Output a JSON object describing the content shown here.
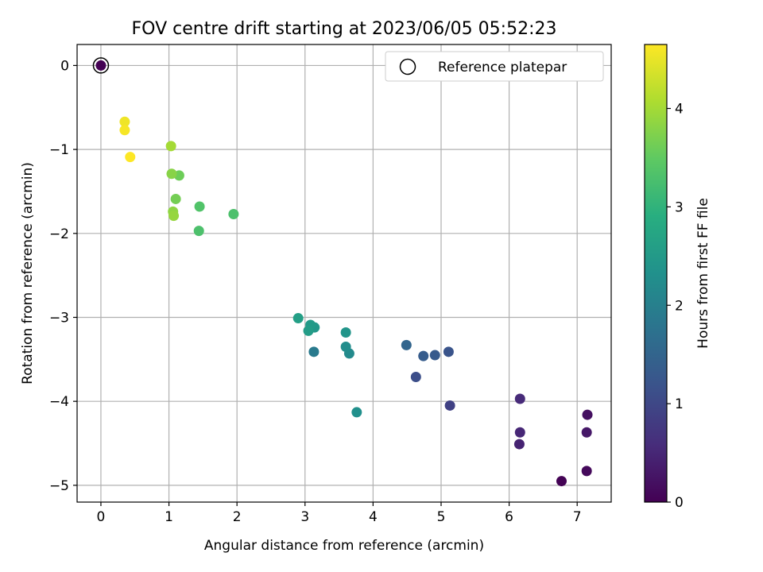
{
  "chart_data": {
    "type": "scatter",
    "title": "FOV centre drift starting at 2023/06/05 05:52:23",
    "xlabel": "Angular distance from reference (arcmin)",
    "ylabel": "Rotation from reference (arcmin)",
    "xlim": [
      -0.35,
      7.5
    ],
    "ylim": [
      -5.2,
      0.25
    ],
    "xticks": [
      0,
      1,
      2,
      3,
      4,
      5,
      6,
      7
    ],
    "yticks": [
      0,
      -1,
      -2,
      -3,
      -4,
      -5
    ],
    "grid": true,
    "legend": {
      "location": "top-right",
      "entries": [
        "Reference platepar"
      ]
    },
    "colorbar": {
      "label": "Hours from first FF file",
      "colormap": "viridis",
      "range": [
        0,
        4.65
      ],
      "ticks": [
        0,
        1,
        2,
        3,
        4
      ]
    },
    "reference": {
      "x": 0,
      "y": 0
    },
    "points": [
      {
        "x": 0.0,
        "y": 0.0,
        "h": 0.0
      },
      {
        "x": 6.77,
        "y": -4.95,
        "h": 0.02
      },
      {
        "x": 7.14,
        "y": -4.83,
        "h": 0.1
      },
      {
        "x": 7.15,
        "y": -4.16,
        "h": 0.2
      },
      {
        "x": 7.14,
        "y": -4.37,
        "h": 0.3
      },
      {
        "x": 6.15,
        "y": -4.51,
        "h": 0.45
      },
      {
        "x": 6.16,
        "y": -4.37,
        "h": 0.5
      },
      {
        "x": 6.16,
        "y": -3.97,
        "h": 0.55
      },
      {
        "x": 5.13,
        "y": -4.05,
        "h": 0.9
      },
      {
        "x": 4.63,
        "y": -3.71,
        "h": 1.1
      },
      {
        "x": 5.11,
        "y": -3.41,
        "h": 1.2
      },
      {
        "x": 4.91,
        "y": -3.45,
        "h": 1.3
      },
      {
        "x": 4.74,
        "y": -3.46,
        "h": 1.35
      },
      {
        "x": 4.49,
        "y": -3.33,
        "h": 1.5
      },
      {
        "x": 3.13,
        "y": -3.41,
        "h": 1.9
      },
      {
        "x": 3.76,
        "y": -4.13,
        "h": 2.3
      },
      {
        "x": 3.65,
        "y": -3.43,
        "h": 2.2
      },
      {
        "x": 3.6,
        "y": -3.35,
        "h": 2.25
      },
      {
        "x": 3.6,
        "y": -3.18,
        "h": 2.4
      },
      {
        "x": 3.14,
        "y": -3.12,
        "h": 2.45
      },
      {
        "x": 3.08,
        "y": -3.09,
        "h": 2.5
      },
      {
        "x": 3.05,
        "y": -3.16,
        "h": 2.55
      },
      {
        "x": 2.9,
        "y": -3.01,
        "h": 2.6
      },
      {
        "x": 1.44,
        "y": -1.97,
        "h": 3.3
      },
      {
        "x": 1.45,
        "y": -1.68,
        "h": 3.35
      },
      {
        "x": 1.95,
        "y": -1.77,
        "h": 3.3
      },
      {
        "x": 1.15,
        "y": -1.31,
        "h": 3.6
      },
      {
        "x": 1.1,
        "y": -1.59,
        "h": 3.65
      },
      {
        "x": 1.04,
        "y": -1.29,
        "h": 3.8
      },
      {
        "x": 1.06,
        "y": -1.74,
        "h": 3.85
      },
      {
        "x": 1.07,
        "y": -1.79,
        "h": 3.9
      },
      {
        "x": 1.03,
        "y": -0.96,
        "h": 4.0
      },
      {
        "x": 0.35,
        "y": -0.67,
        "h": 4.55
      },
      {
        "x": 0.35,
        "y": -0.77,
        "h": 4.6
      },
      {
        "x": 0.43,
        "y": -1.09,
        "h": 4.65
      }
    ]
  }
}
